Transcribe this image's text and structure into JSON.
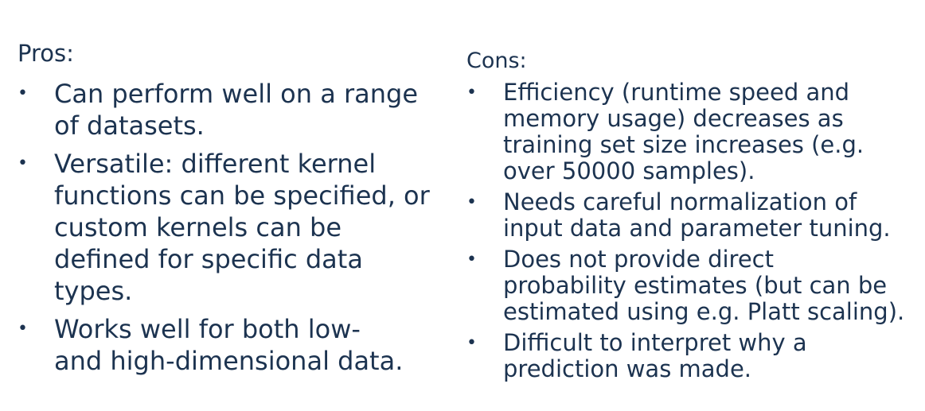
{
  "pros": {
    "heading": "Pros:",
    "bullet": "•",
    "items": [
      {
        "text": "Can perform well on a range\nof datasets."
      },
      {
        "text": "Versatile: different kernel\nfunctions can be specified, or\ncustom kernels can be\ndefined for specific data\ntypes."
      },
      {
        "text": "Works well for both low-\nand high-dimensional data."
      }
    ]
  },
  "cons": {
    "heading": "Cons:",
    "bullet": "•",
    "items": [
      {
        "text": "Efficiency (runtime speed and\nmemory usage) decreases as\ntraining set size increases (e.g.\nover 50000 samples)."
      },
      {
        "text": "Needs careful normalization of\ninput data and parameter tuning."
      },
      {
        "text": "Does not provide direct\nprobability estimates (but can be\nestimated using e.g. Platt scaling)."
      },
      {
        "text": "Difficult to interpret why a\nprediction was made."
      }
    ]
  }
}
